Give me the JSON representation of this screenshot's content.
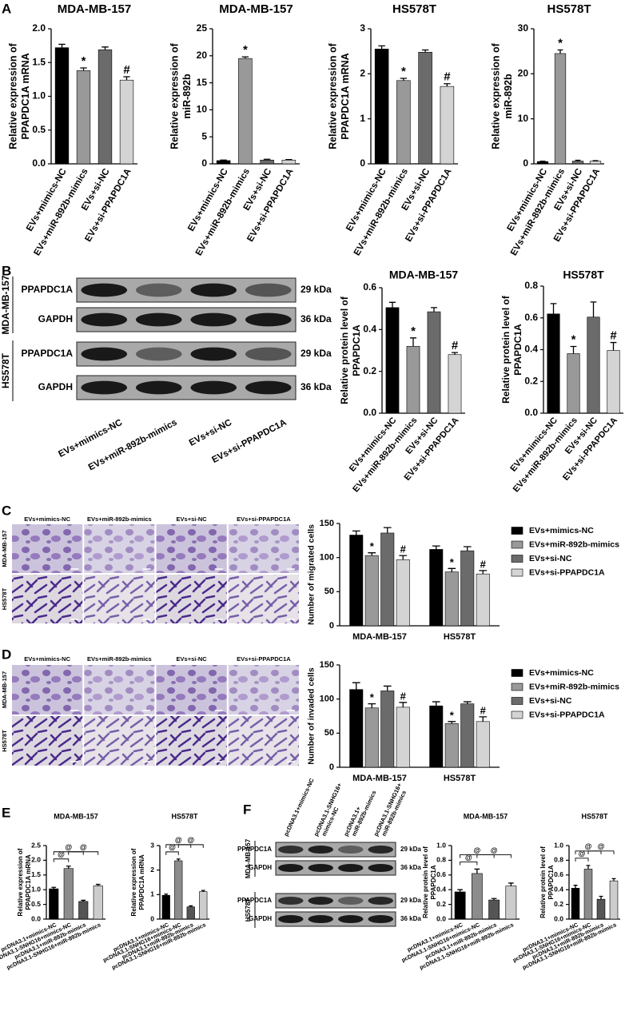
{
  "panel_labels": [
    "A",
    "B",
    "C",
    "D",
    "E",
    "F"
  ],
  "chart_data": [
    {
      "type": "bar",
      "title": "MDA-MB-157",
      "ylabel": [
        "Relative expression of",
        "PPAPDC1A mRNA"
      ],
      "categories": [
        "EVs+mimics-NC",
        "EVs+miR-892b-mimics",
        "EVs+si-NC",
        "EVs+si-PPAPDC1A"
      ],
      "values": [
        1.72,
        1.38,
        1.69,
        1.24
      ],
      "errors": [
        0.05,
        0.04,
        0.04,
        0.05
      ],
      "colors": [
        "#000000",
        "#999999",
        "#6b6b6b",
        "#d4d4d4"
      ],
      "markers": [
        null,
        "*",
        null,
        "#"
      ],
      "ylim": [
        0,
        2
      ],
      "yticks": [
        {
          "value": 0,
          "label": "0.0"
        },
        0.5,
        {
          "value": 1,
          "label": "1.0"
        },
        1.5,
        {
          "value": 2,
          "label": "2.0"
        }
      ]
    },
    {
      "type": "bar",
      "title": "MDA-MB-157",
      "ylabel": [
        "Relative expression of",
        "miR-892b"
      ],
      "categories": [
        "EVs+mimics-NC",
        "EVs+miR-892b-mimics",
        "EVs+si-NC",
        "EVs+si-PPAPDC1A"
      ],
      "values": [
        0.6,
        19.5,
        0.7,
        0.7
      ],
      "errors": [
        0.1,
        0.3,
        0.15,
        0.1
      ],
      "colors": [
        "#000000",
        "#999999",
        "#6b6b6b",
        "#d4d4d4"
      ],
      "markers": [
        null,
        "*",
        null,
        null
      ],
      "ylim": [
        0,
        25
      ],
      "yticks": [
        0,
        5,
        10,
        15,
        20,
        25
      ]
    },
    {
      "type": "bar",
      "title": "HS578T",
      "ylabel": [
        "Relative expression of",
        "PPAPDC1A mRNA"
      ],
      "categories": [
        "EVs+mimics-NC",
        "EVs+miR-892b-mimics",
        "EVs+si-NC",
        "EVs+si-PPAPDC1A"
      ],
      "values": [
        2.55,
        1.85,
        2.48,
        1.72
      ],
      "errors": [
        0.07,
        0.05,
        0.05,
        0.06
      ],
      "colors": [
        "#000000",
        "#999999",
        "#6b6b6b",
        "#d4d4d4"
      ],
      "markers": [
        null,
        "*",
        null,
        "#"
      ],
      "ylim": [
        0,
        3
      ],
      "yticks": [
        0,
        1,
        2,
        3
      ]
    },
    {
      "type": "bar",
      "title": "HS578T",
      "ylabel": [
        "Relative expression of",
        "miR-892b"
      ],
      "categories": [
        "EVs+mimics-NC",
        "EVs+miR-892b-mimics",
        "EVs+si-NC",
        "EVs+si-PPAPDC1A"
      ],
      "values": [
        0.5,
        24.5,
        0.6,
        0.6
      ],
      "errors": [
        0.1,
        0.8,
        0.2,
        0.1
      ],
      "colors": [
        "#000000",
        "#999999",
        "#6b6b6b",
        "#d4d4d4"
      ],
      "markers": [
        null,
        "*",
        null,
        null
      ],
      "ylim": [
        0,
        30
      ],
      "yticks": [
        0,
        10,
        20,
        30
      ]
    },
    {
      "type": "bar",
      "title": "MDA-MB-157",
      "ylabel": [
        "Relative protein level of",
        "PPAPDC1A"
      ],
      "categories": [
        "EVs+mimics-NC",
        "EVs+miR-892b-mimics",
        "EVs+si-NC",
        "EVs+si-PPAPDC1A"
      ],
      "values": [
        0.505,
        0.32,
        0.485,
        0.28
      ],
      "errors": [
        0.025,
        0.04,
        0.02,
        0.01
      ],
      "colors": [
        "#000000",
        "#999999",
        "#6b6b6b",
        "#d4d4d4"
      ],
      "markers": [
        null,
        "*",
        null,
        "#"
      ],
      "ylim": [
        0,
        0.6
      ],
      "yticks": [
        {
          "value": 0,
          "label": "0.0"
        },
        0.2,
        0.4,
        0.6
      ]
    },
    {
      "type": "bar",
      "title": "HS578T",
      "ylabel": [
        "Relative protein level of",
        "PPAPDC1A"
      ],
      "categories": [
        "EVs+mimics-NC",
        "EVs+miR-892b-mimics",
        "EVs+si-NC",
        "EVs+si-PPAPDC1A"
      ],
      "values": [
        0.625,
        0.375,
        0.605,
        0.395
      ],
      "errors": [
        0.065,
        0.045,
        0.095,
        0.05
      ],
      "colors": [
        "#000000",
        "#999999",
        "#6b6b6b",
        "#d4d4d4"
      ],
      "markers": [
        null,
        "*",
        null,
        "#"
      ],
      "ylim": [
        0,
        0.8
      ],
      "yticks": [
        {
          "value": 0,
          "label": "0.0"
        },
        0.2,
        0.4,
        0.6,
        0.8
      ]
    },
    {
      "type": "bar",
      "ylabel": "Number of migrated cells",
      "categories": [
        "MDA-MB-157",
        "HS578T"
      ],
      "legend": "right",
      "series": [
        {
          "name": "EVs+mimics-NC",
          "color": "#000000",
          "values": [
            133,
            112
          ],
          "errors": [
            6,
            5
          ],
          "markers": [
            null,
            null
          ]
        },
        {
          "name": "EVs+miR-892b-mimics",
          "color": "#999999",
          "values": [
            103,
            79
          ],
          "errors": [
            4,
            5
          ],
          "markers": [
            "*",
            "*"
          ]
        },
        {
          "name": "EVs+si-NC",
          "color": "#6b6b6b",
          "values": [
            136,
            110
          ],
          "errors": [
            8,
            6
          ],
          "markers": [
            null,
            null
          ]
        },
        {
          "name": "EVs+si-PPAPDC1A",
          "color": "#d4d4d4",
          "values": [
            97,
            76
          ],
          "errors": [
            6,
            5
          ],
          "markers": [
            "#",
            "#"
          ]
        }
      ],
      "ylim": [
        0,
        150
      ],
      "yticks": [
        0,
        50,
        100,
        150
      ]
    },
    {
      "type": "bar",
      "ylabel": "Number of invaded cells",
      "categories": [
        "MDA-MB-157",
        "HS578T"
      ],
      "legend": "right",
      "series": [
        {
          "name": "EVs+mimics-NC",
          "color": "#000000",
          "values": [
            114,
            90
          ],
          "errors": [
            10,
            6
          ],
          "markers": [
            null,
            null
          ]
        },
        {
          "name": "EVs+miR-892b-mimics",
          "color": "#999999",
          "values": [
            87,
            64
          ],
          "errors": [
            6,
            3
          ],
          "markers": [
            "*",
            "*"
          ]
        },
        {
          "name": "EVs+si-NC",
          "color": "#6b6b6b",
          "values": [
            112,
            93
          ],
          "errors": [
            7,
            3
          ],
          "markers": [
            null,
            null
          ]
        },
        {
          "name": "EVs+si-PPAPDC1A",
          "color": "#d4d4d4",
          "values": [
            88,
            67
          ],
          "errors": [
            7,
            7
          ],
          "markers": [
            "#",
            "#"
          ]
        }
      ],
      "ylim": [
        0,
        150
      ],
      "yticks": [
        0,
        50,
        100,
        150
      ]
    },
    {
      "type": "bar",
      "title": "MDA-MB-157",
      "ylabel": [
        "Relative expression of",
        "PPAPDC1A mRNA"
      ],
      "categories": [
        "pcDNA3.1+mimics-NC",
        "pcDNA3.1-SNHG16+mimics-NC",
        "pcDNA3.1+miR-892b-mimics",
        "pcDNA3.1-SNHG16+miR-892b-mimics"
      ],
      "values": [
        1.03,
        1.72,
        0.6,
        1.13
      ],
      "errors": [
        0.05,
        0.08,
        0.04,
        0.05
      ],
      "colors": [
        "#000000",
        "#8c8c8c",
        "#555555",
        "#cccccc"
      ],
      "brackets": [
        {
          "from": 0,
          "to": 1,
          "text": "@"
        },
        {
          "from": 0,
          "to": 2,
          "text": "@"
        },
        {
          "from": 1,
          "to": 3,
          "text": "@"
        }
      ],
      "ylim": [
        0,
        2.5
      ],
      "yticks": [
        {
          "value": 0,
          "label": "0.0"
        },
        0.5,
        {
          "value": 1,
          "label": "1.0"
        },
        1.5,
        {
          "value": 2,
          "label": "2.0"
        },
        2.5
      ]
    },
    {
      "type": "bar",
      "title": "HS578T",
      "ylabel": [
        "Relative expression of",
        "PPAPDC1A mRNA"
      ],
      "categories": [
        "pcDNA3.1+mimics-NC",
        "pcDNA3.1-SNHG16+mimics-NC",
        "pcDNA3.1+miR-892b-mimics",
        "pcDNA3.1-SNHG16+miR-892b-mimics"
      ],
      "values": [
        0.97,
        2.38,
        0.5,
        1.12
      ],
      "errors": [
        0.05,
        0.07,
        0.04,
        0.05
      ],
      "colors": [
        "#000000",
        "#8c8c8c",
        "#555555",
        "#cccccc"
      ],
      "brackets": [
        {
          "from": 0,
          "to": 1,
          "text": "@"
        },
        {
          "from": 0,
          "to": 2,
          "text": "@"
        },
        {
          "from": 1,
          "to": 3,
          "text": "@"
        }
      ],
      "ylim": [
        0,
        3
      ],
      "yticks": [
        0,
        1,
        2,
        3
      ]
    },
    {
      "type": "bar",
      "title": "MDA-MB-157",
      "ylabel": [
        "Relative protein level of",
        "PPAPDC1A"
      ],
      "categories": [
        "pcDNA3.1+mimics-NC",
        "pcDNA3.1-SNHG16+mimics-NC",
        "pcDNA3.1+miR-892b-mimics",
        "pcDNA3.1-SNHG16+miR-892b-mimics"
      ],
      "values": [
        0.37,
        0.62,
        0.26,
        0.45
      ],
      "errors": [
        0.03,
        0.06,
        0.02,
        0.04
      ],
      "colors": [
        "#000000",
        "#8c8c8c",
        "#555555",
        "#cccccc"
      ],
      "brackets": [
        {
          "from": 0,
          "to": 1,
          "text": "@"
        },
        {
          "from": 0,
          "to": 2,
          "text": "@"
        },
        {
          "from": 1,
          "to": 3,
          "text": "@"
        }
      ],
      "ylim": [
        0,
        1
      ],
      "yticks": [
        {
          "value": 0,
          "label": "0.0"
        },
        0.2,
        0.4,
        0.6,
        0.8,
        {
          "value": 1,
          "label": "1.0"
        }
      ]
    },
    {
      "type": "bar",
      "title": "HS578T",
      "ylabel": [
        "Relative protein level of",
        "PPAPDC1A"
      ],
      "categories": [
        "pcDNA3.1+mimics-NC",
        "pcDNA3.1-SNHG16+mimics-NC",
        "pcDNA3.1+miR-892b-mimics",
        "pcDNA3.1-SNHG16+miR-892b-mimics"
      ],
      "values": [
        0.42,
        0.68,
        0.27,
        0.52
      ],
      "errors": [
        0.04,
        0.05,
        0.04,
        0.03
      ],
      "colors": [
        "#000000",
        "#8c8c8c",
        "#555555",
        "#cccccc"
      ],
      "brackets": [
        {
          "from": 0,
          "to": 1,
          "text": "@"
        },
        {
          "from": 0,
          "to": 2,
          "text": "@"
        },
        {
          "from": 1,
          "to": 3,
          "text": "@"
        }
      ],
      "ylim": [
        0,
        1
      ],
      "yticks": [
        {
          "value": 0,
          "label": "0.0"
        },
        0.2,
        0.4,
        0.6,
        0.8,
        {
          "value": 1,
          "label": "1.0"
        }
      ]
    }
  ],
  "blot_b": {
    "lanes": [
      "EVs+mimics-NC",
      "EVs+miR-892b-mimics",
      "EVs+si-NC",
      "EVs+si-PPAPDC1A"
    ],
    "groups": [
      {
        "cell": "MDA-MB-157",
        "rows": [
          {
            "protein": "PPAPDC1A",
            "size": "29 kDa"
          },
          {
            "protein": "GAPDH",
            "size": "36 kDa"
          }
        ]
      },
      {
        "cell": "HS578T",
        "rows": [
          {
            "protein": "PPAPDC1A",
            "size": "29 kDa"
          },
          {
            "protein": "GAPDH",
            "size": "36 kDa"
          }
        ]
      }
    ]
  },
  "blot_f": {
    "lanes": [
      [
        "pcDNA3.1+mimics-NC"
      ],
      [
        "pcDNA3.1-SNHG16+",
        "mimics-NC"
      ],
      [
        "pcDNA3.1+",
        "miR-892b-mimics"
      ],
      [
        "pcDNA3.1-SNHG16+",
        "miR-892b-mimics"
      ]
    ],
    "groups": [
      {
        "cell": "MDA-MB-157",
        "rows": [
          {
            "protein": "PPAPDC1A",
            "size": "29 kDa"
          },
          {
            "protein": "GAPDH",
            "size": "36 kDa"
          }
        ]
      },
      {
        "cell": "HS578T",
        "rows": [
          {
            "protein": "PPAPDC1A",
            "size": "29 kDa"
          },
          {
            "protein": "GAPDH",
            "size": "36 kDa"
          }
        ]
      }
    ]
  },
  "images_c": {
    "columns": [
      "EVs+mimics-NC",
      "EVs+miR-892b-mimics",
      "EVs+si-NC",
      "EVs+si-PPAPDC1A"
    ],
    "rows": [
      "MDA-MB-157",
      "HS578T"
    ]
  },
  "images_d": {
    "columns": [
      "EVs+mimics-NC",
      "EVs+miR-892b-mimics",
      "EVs+si-NC",
      "EVs+si-PPAPDC1A"
    ],
    "rows": [
      "MDA-MB-157",
      "HS578T"
    ]
  }
}
